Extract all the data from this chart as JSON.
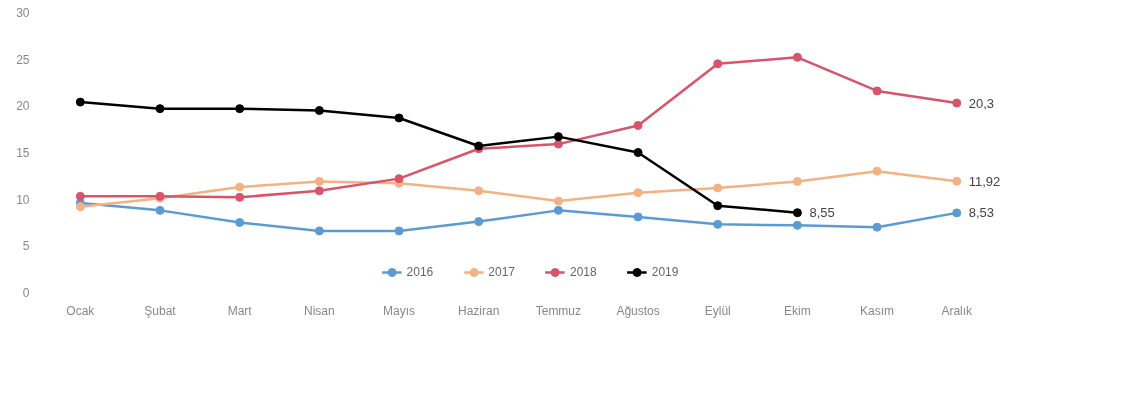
{
  "chart_data": {
    "type": "line",
    "categories": [
      "Ocak",
      "Şubat",
      "Mart",
      "Nisan",
      "Mayıs",
      "Haziran",
      "Temmuz",
      "Ağustos",
      "Eylül",
      "Ekim",
      "Kasım",
      "Aralık"
    ],
    "series": [
      {
        "name": "2016",
        "color": "#5b9bd5",
        "values": [
          9.6,
          8.8,
          7.5,
          6.6,
          6.6,
          7.6,
          8.8,
          8.1,
          7.3,
          7.2,
          7.0,
          8.53
        ],
        "value_labels": [
          null,
          null,
          null,
          null,
          null,
          null,
          null,
          null,
          null,
          null,
          null,
          "8,53"
        ]
      },
      {
        "name": "2017",
        "color": "#f4b183",
        "values": [
          9.2,
          10.1,
          11.3,
          11.9,
          11.7,
          10.9,
          9.8,
          10.7,
          11.2,
          11.9,
          13.0,
          11.92
        ],
        "value_labels": [
          null,
          null,
          null,
          null,
          null,
          null,
          null,
          null,
          null,
          null,
          null,
          "11,92"
        ]
      },
      {
        "name": "2018",
        "color": "#d9546a",
        "values": [
          10.3,
          10.3,
          10.2,
          10.9,
          12.2,
          15.4,
          15.9,
          17.9,
          24.5,
          25.2,
          21.6,
          20.3
        ],
        "value_labels": [
          null,
          null,
          null,
          null,
          null,
          null,
          null,
          null,
          null,
          null,
          null,
          "20,3"
        ]
      },
      {
        "name": "2019",
        "color": "#000000",
        "values": [
          20.4,
          19.7,
          19.7,
          19.5,
          18.7,
          15.7,
          16.7,
          15.0,
          9.3,
          8.55,
          null,
          null
        ],
        "value_labels": [
          null,
          null,
          null,
          null,
          null,
          null,
          null,
          null,
          null,
          "8,55",
          null,
          null
        ]
      }
    ],
    "ylim": [
      0,
      30
    ],
    "yticks": [
      0,
      5,
      10,
      15,
      20,
      25,
      30
    ],
    "grid": false,
    "legend": "bottom",
    "marker": "circle",
    "line_style": "solid"
  }
}
